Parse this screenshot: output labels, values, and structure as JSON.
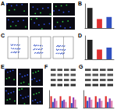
{
  "panel_labels": [
    "A",
    "B",
    "C",
    "D",
    "E",
    "F",
    "G"
  ],
  "chart_data": [
    {
      "type": "bar",
      "categories": [
        null,
        null,
        null
      ],
      "values": [
        1.0,
        0.45,
        0.55
      ],
      "colors": [
        "#222222",
        "#e03030",
        "#3050c0"
      ],
      "ylim": [
        0,
        1.2
      ],
      "tick_labels": false
    },
    {
      "type": "bar",
      "categories": [
        null,
        null,
        null
      ],
      "values": [
        1.0,
        0.5,
        0.6
      ],
      "colors": [
        "#222222",
        "#e03030",
        "#3050c0"
      ],
      "ylim": [
        0,
        1.2
      ],
      "tick_labels": false
    },
    {
      "type": "bar",
      "categories": [
        null,
        null,
        null
      ],
      "series": [
        {
          "name": null,
          "color": "#e03030",
          "values": [
            1.0,
            1.0,
            1.0
          ]
        },
        {
          "name": null,
          "color": "#3050c0",
          "values": [
            0.5,
            0.6,
            0.4
          ]
        },
        {
          "name": null,
          "color": "#9040b0",
          "values": [
            0.8,
            0.7,
            0.9
          ]
        },
        {
          "name": null,
          "color": "#e080b0",
          "values": [
            0.6,
            0.5,
            0.7
          ]
        }
      ],
      "ylim": [
        0,
        1.5
      ],
      "tick_labels": false
    },
    {
      "type": "bar",
      "categories": [
        null,
        null,
        null
      ],
      "series": [
        {
          "name": null,
          "color": "#e03030",
          "values": [
            1.0,
            1.0,
            1.0
          ]
        },
        {
          "name": null,
          "color": "#3050c0",
          "values": [
            0.6,
            0.5,
            0.5
          ]
        },
        {
          "name": null,
          "color": "#9040b0",
          "values": [
            0.9,
            0.8,
            0.8
          ]
        },
        {
          "name": null,
          "color": "#e080b0",
          "values": [
            0.7,
            0.6,
            0.6
          ]
        }
      ],
      "ylim": [
        0,
        1.5
      ],
      "tick_labels": false
    }
  ]
}
